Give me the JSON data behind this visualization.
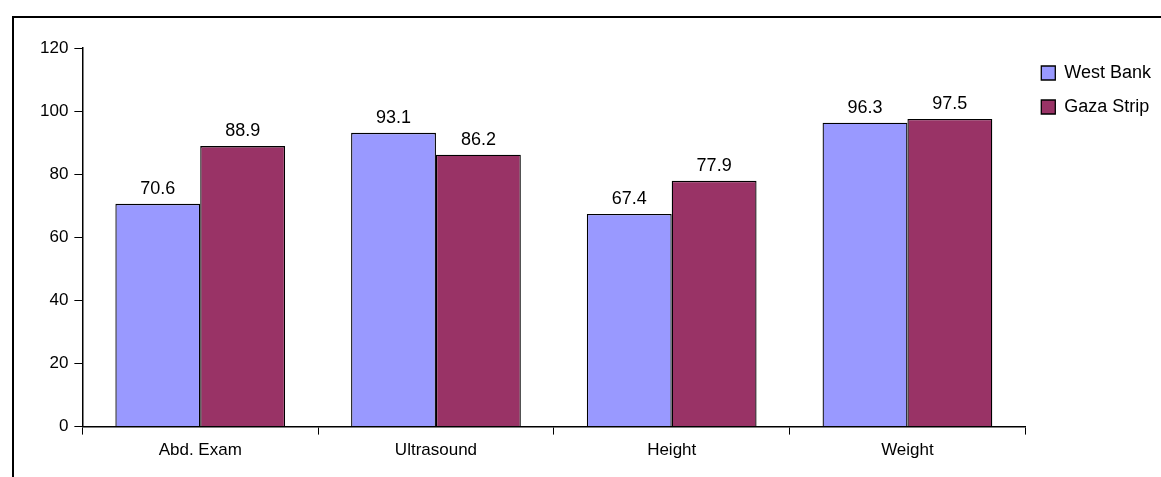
{
  "chart_data": {
    "type": "bar",
    "categories": [
      "Abd. Exam",
      "Ultrasound",
      "Height",
      "Weight"
    ],
    "series": [
      {
        "name": "West Bank",
        "color": "#9999ff",
        "values": [
          70.6,
          93.1,
          67.4,
          96.3
        ]
      },
      {
        "name": "Gaza Strip",
        "color": "#993366",
        "values": [
          88.9,
          86.2,
          77.9,
          97.5
        ]
      }
    ],
    "ylim": [
      0,
      120
    ],
    "yticks": [
      0,
      20,
      40,
      60,
      80,
      100,
      120
    ],
    "grid": false,
    "legend": "top right",
    "data_labels": true
  }
}
